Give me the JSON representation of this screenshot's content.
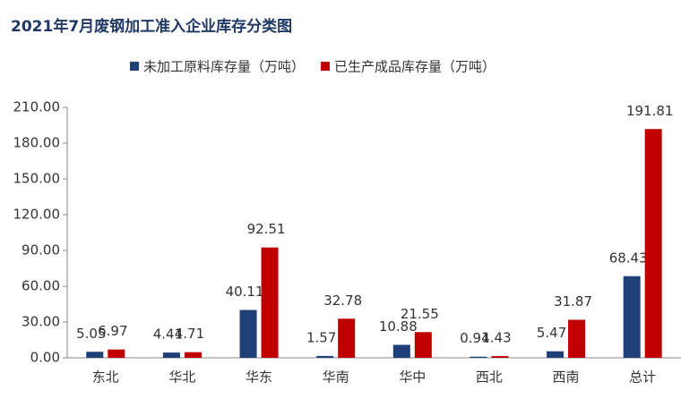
{
  "chart_data": {
    "type": "bar",
    "title": "2021年7月废钢加工准入企业库存分类图",
    "categories": [
      "东北",
      "华北",
      "华东",
      "华南",
      "华中",
      "西北",
      "西南",
      "总计"
    ],
    "series": [
      {
        "name": "未加工原料库存量（万吨）",
        "color": "#1f3f77",
        "values": [
          5.05,
          4.41,
          40.11,
          1.57,
          10.88,
          0.94,
          5.47,
          68.43
        ]
      },
      {
        "name": "已生产成品库存量（万吨）",
        "color": "#c00000",
        "values": [
          6.97,
          4.71,
          92.51,
          32.78,
          21.55,
          1.43,
          31.87,
          191.81
        ]
      }
    ],
    "ylim": [
      0,
      210
    ],
    "yticks": [
      {
        "value": 0,
        "label": "0.00"
      },
      {
        "value": 30,
        "label": "30.00"
      },
      {
        "value": 60,
        "label": "60.00"
      },
      {
        "value": 90,
        "label": "90.00"
      },
      {
        "value": 120,
        "label": "120.00"
      },
      {
        "value": 150,
        "label": "150.00"
      },
      {
        "value": 180,
        "label": "180.00"
      },
      {
        "value": 210,
        "label": "210.00"
      }
    ],
    "grid": false
  }
}
